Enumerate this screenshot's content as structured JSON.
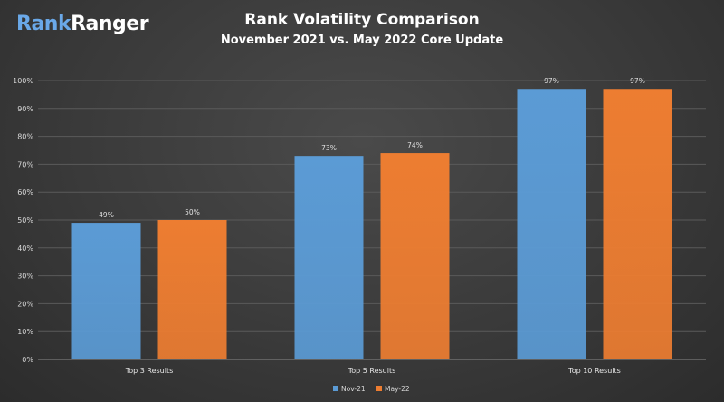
{
  "logo": {
    "part1": "Rank",
    "part2": "Ranger"
  },
  "chart_data": {
    "type": "bar",
    "title": "Rank Volatility Comparison",
    "subtitle": "November 2021 vs. May 2022 Core Update",
    "categories": [
      "Top 3 Results",
      "Top 5 Results",
      "Top 10 Results"
    ],
    "series": [
      {
        "name": "Nov-21",
        "color": "#5b9bd5",
        "values": [
          49,
          73,
          97
        ],
        "labels": [
          "49%",
          "73%",
          "97%"
        ]
      },
      {
        "name": "May-22",
        "color": "#ed7d31",
        "values": [
          50,
          74,
          97
        ],
        "labels": [
          "50%",
          "74%",
          "97%"
        ]
      }
    ],
    "ylim": [
      0,
      100
    ],
    "yticks": [
      "0%",
      "10%",
      "20%",
      "30%",
      "40%",
      "50%",
      "60%",
      "70%",
      "80%",
      "90%",
      "100%"
    ],
    "grid": true,
    "legend_position": "bottom"
  }
}
